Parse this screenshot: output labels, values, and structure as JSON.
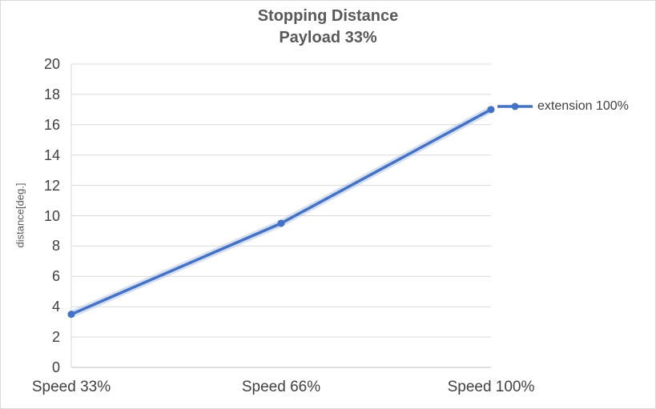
{
  "chart_data": {
    "type": "line",
    "title": "Stopping Distance",
    "subtitle": "Payload 33%",
    "ylabel": "distance[deg.]",
    "xlabel": "",
    "categories": [
      "Speed 33%",
      "Speed 66%",
      "Speed 100%"
    ],
    "series": [
      {
        "name": "extension 100%",
        "values": [
          3.5,
          9.5,
          17
        ]
      }
    ],
    "ylim": [
      0,
      20
    ],
    "ytick_step": 2,
    "grid": true,
    "legend_position": "right",
    "colors": {
      "series": "#4472C4",
      "series_glow": "#B4C7E7",
      "gridline": "#D9D9D9",
      "axis": "#BFBFBF",
      "title_text": "#595959",
      "tick_text": "#404040"
    }
  }
}
